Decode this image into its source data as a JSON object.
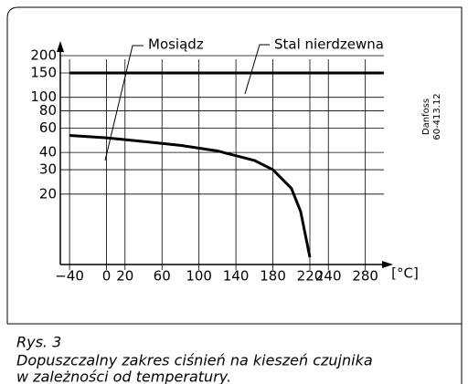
{
  "chart_data": {
    "type": "line",
    "x_label": "[°C]",
    "side_note": [
      "Danfoss",
      "60-413.12"
    ],
    "caption": [
      "Rys. 3",
      "Dopuszczalny zakres ciśnień na kieszeń czujnika",
      "w zależności od temperatury."
    ],
    "log_y": true,
    "grid": true,
    "xlim": [
      -50,
      310
    ],
    "ylim": [
      6.2,
      255
    ],
    "xticks": [
      {
        "value": -40,
        "label": "−40"
      },
      0,
      20,
      60,
      100,
      140,
      180,
      220,
      240,
      280
    ],
    "yticks": [
      200,
      150,
      100,
      80,
      60,
      40,
      30,
      20
    ],
    "series": [
      {
        "name": "Mosiądz",
        "color": "#000000",
        "x": [
          -40,
          0,
          40,
          80,
          120,
          160,
          180,
          200,
          210,
          220
        ],
        "values": [
          53,
          51,
          48,
          45,
          41,
          35,
          30,
          22,
          15,
          7
        ]
      },
      {
        "name": "Stal nierdzewna",
        "color": "#000000",
        "x": [
          -40,
          300
        ],
        "values": [
          150,
          150
        ]
      }
    ]
  }
}
